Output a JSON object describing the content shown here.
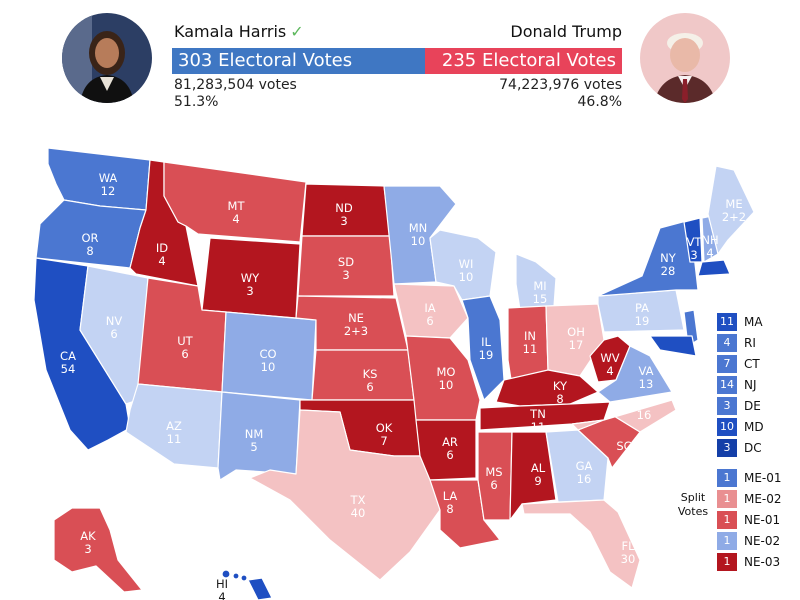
{
  "header": {
    "harris": {
      "name": "Kamala Harris",
      "check": "✓",
      "electoral_label": "303 Electoral Votes",
      "electoral_votes": 303,
      "votes": "81,283,504 votes",
      "pct": "51.3%",
      "color": "#3f77c3"
    },
    "trump": {
      "name": "Donald Trump",
      "electoral_label": "235 Electoral Votes",
      "electoral_votes": 235,
      "votes": "74,223,976 votes",
      "pct": "46.8%",
      "color": "#e8435a"
    }
  },
  "colors": {
    "dem_safe": "#1f4fc2",
    "dem_likely": "#4b77d1",
    "dem_lean": "#8fabe6",
    "dem_tilt": "#c3d3f3",
    "rep_safe": "#b3161f",
    "rep_likely": "#d94f55",
    "rep_lean": "#e98f91",
    "rep_tilt": "#f4c2c3"
  },
  "states": {
    "WA": "12",
    "OR": "8",
    "CA": "54",
    "NV": "6",
    "ID": "4",
    "MT": "4",
    "WY": "3",
    "UT": "6",
    "AZ": "11",
    "CO": "10",
    "NM": "5",
    "ND": "3",
    "SD": "3",
    "NE": "2+3",
    "KS": "6",
    "OK": "7",
    "TX": "40",
    "MN": "10",
    "IA": "6",
    "MO": "10",
    "AR": "6",
    "LA": "8",
    "WI": "10",
    "IL": "19",
    "MS": "6",
    "MI": "15",
    "IN": "11",
    "KY": "8",
    "TN": "11",
    "AL": "9",
    "OH": "17",
    "WV": "4",
    "GA": "16",
    "FL": "30",
    "SC": "9",
    "NC": "16",
    "VA": "13",
    "PA": "19",
    "NY": "28",
    "VT": "3",
    "NH": "4",
    "ME": "2+2",
    "AK": "3",
    "HI": "4"
  },
  "legend_small": [
    {
      "value": "11",
      "label": "MA",
      "color": "#1f4fc2"
    },
    {
      "value": "4",
      "label": "RI",
      "color": "#4b77d1"
    },
    {
      "value": "7",
      "label": "CT",
      "color": "#4b77d1"
    },
    {
      "value": "14",
      "label": "NJ",
      "color": "#4b77d1"
    },
    {
      "value": "3",
      "label": "DE",
      "color": "#4b77d1"
    },
    {
      "value": "10",
      "label": "MD",
      "color": "#1f4fc2"
    },
    {
      "value": "3",
      "label": "DC",
      "color": "#143fa8"
    }
  ],
  "split_votes": {
    "title_line1": "Split",
    "title_line2": "Votes",
    "items": [
      {
        "value": "1",
        "label": "ME-01",
        "color": "#4b77d1"
      },
      {
        "value": "1",
        "label": "ME-02",
        "color": "#e98f91"
      },
      {
        "value": "1",
        "label": "NE-01",
        "color": "#d94f55"
      },
      {
        "value": "1",
        "label": "NE-02",
        "color": "#8fabe6"
      },
      {
        "value": "1",
        "label": "NE-03",
        "color": "#b3161f"
      }
    ]
  }
}
